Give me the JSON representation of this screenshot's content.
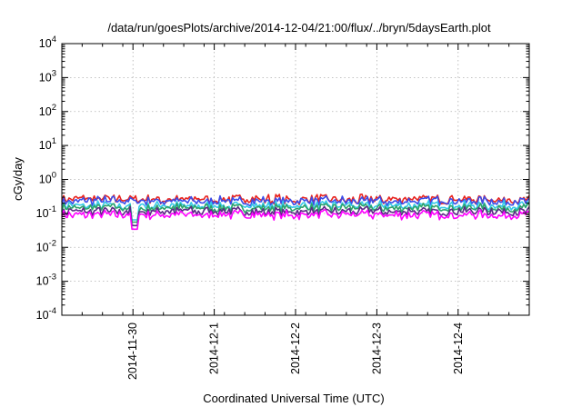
{
  "chart_data": {
    "type": "line",
    "title": "/data/run/goesPlots/archive/2014-12-04/21:00/flux/../bryn/5daysEarth.plot",
    "xlabel": "Coordinated Universal Time (UTC)",
    "ylabel": "cGy/day",
    "y_scale": "log",
    "ylim": [
      0.0001,
      10000
    ],
    "y_ticks": [
      {
        "base": "10",
        "exp": "-4"
      },
      {
        "base": "10",
        "exp": "-3"
      },
      {
        "base": "10",
        "exp": "-2"
      },
      {
        "base": "10",
        "exp": "-1"
      },
      {
        "base": "10",
        "exp": "0"
      },
      {
        "base": "10",
        "exp": "1"
      },
      {
        "base": "10",
        "exp": "2"
      },
      {
        "base": "10",
        "exp": "3"
      },
      {
        "base": "10",
        "exp": "4"
      }
    ],
    "xlim": [
      "2014-11-29T03:00",
      "2014-12-04T21:00"
    ],
    "x_ticks": [
      "2014-11-30",
      "2014-12-1",
      "2014-12-2",
      "2014-12-3",
      "2014-12-4"
    ],
    "x_tick_dates": [
      "2014-11-30",
      "2014-12-01",
      "2014-12-02",
      "2014-12-03",
      "2014-12-04"
    ],
    "grid": true,
    "legend": "none",
    "series": [
      {
        "color": "#e8231e",
        "base": 0.26,
        "jitter": 0.35
      },
      {
        "color": "#3b4ce8",
        "base": 0.23,
        "jitter": 0.35
      },
      {
        "color": "#35c9e8",
        "base": 0.17,
        "jitter": 0.3
      },
      {
        "color": "#2fa36b",
        "base": 0.145,
        "jitter": 0.3
      },
      {
        "color": "#5b2a86",
        "base": 0.115,
        "jitter": 0.3
      },
      {
        "color": "#ff00ff",
        "base": 0.09,
        "jitter": 0.3
      }
    ]
  }
}
